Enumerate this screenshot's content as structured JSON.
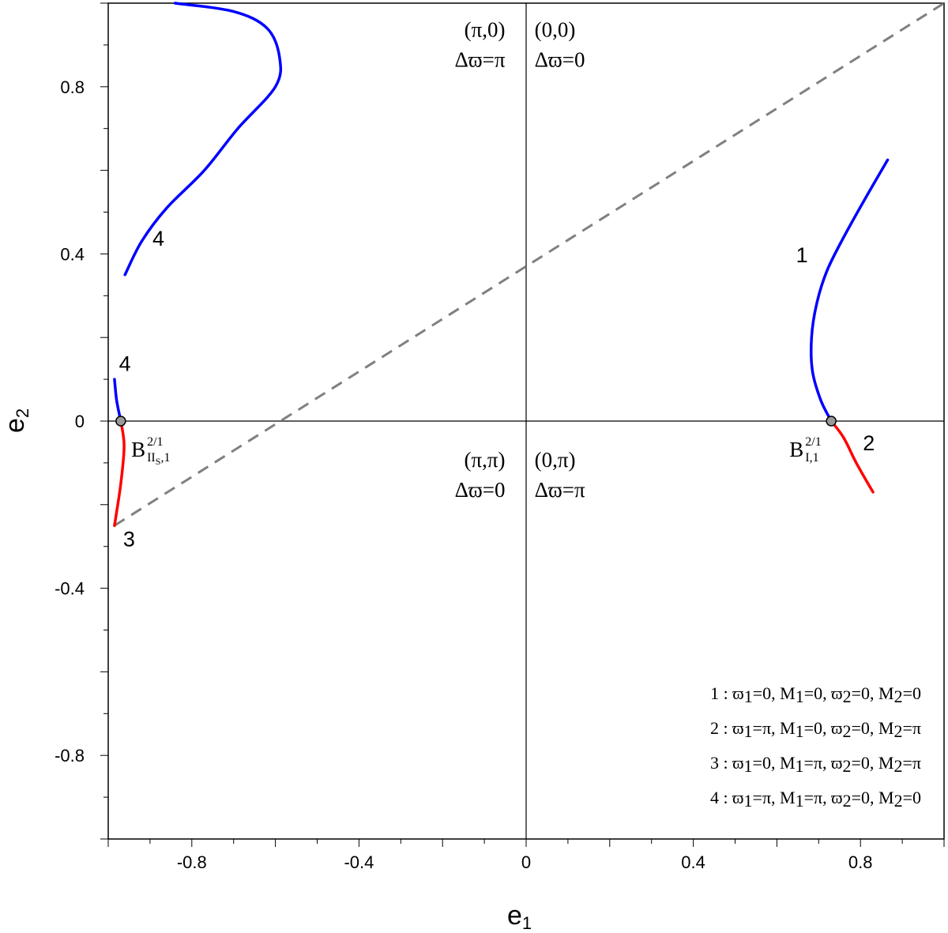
{
  "chart_data": {
    "type": "line",
    "xlabel": "e",
    "xlabel_sub": "1",
    "ylabel": "e",
    "ylabel_sub": "2",
    "xlim": [
      -1,
      1
    ],
    "ylim": [
      -1,
      1
    ],
    "grid": false,
    "x_ticks": [
      {
        "value": -0.8,
        "label": "-0.8"
      },
      {
        "value": -0.4,
        "label": "-0.4"
      },
      {
        "value": 0,
        "label": "0"
      },
      {
        "value": 0.4,
        "label": "0.4"
      },
      {
        "value": 0.8,
        "label": "0.8"
      }
    ],
    "y_ticks": [
      {
        "value": 0.8,
        "label": "0.8"
      },
      {
        "value": 0.4,
        "label": "0.4"
      },
      {
        "value": 0,
        "label": "0"
      },
      {
        "value": -0.4,
        "label": "-0.4"
      },
      {
        "value": -0.8,
        "label": "-0.8"
      }
    ],
    "quadrant_labels": [
      {
        "line1": "(π,0)",
        "line2": "Δϖ=π",
        "x": -0.05,
        "y": 0.92,
        "anchor": "end"
      },
      {
        "line1": "(0,0)",
        "line2": "Δϖ=0",
        "x": 0.02,
        "y": 0.92,
        "anchor": "start"
      },
      {
        "line1": "(π,π)",
        "line2": "Δϖ=0",
        "x": -0.05,
        "y": -0.11,
        "anchor": "end"
      },
      {
        "line1": "(0,π)",
        "line2": "Δϖ=π",
        "x": 0.02,
        "y": -0.11,
        "anchor": "start"
      }
    ],
    "dashed_line": {
      "color": "#808080",
      "points": [
        [
          -0.985,
          -0.25
        ],
        [
          1.0,
          1.0
        ]
      ]
    },
    "series": [
      {
        "label": "1",
        "color": "#0000ff",
        "points": [
          [
            0.73,
            0.0
          ],
          [
            0.705,
            0.05
          ],
          [
            0.685,
            0.12
          ],
          [
            0.683,
            0.2
          ],
          [
            0.695,
            0.28
          ],
          [
            0.72,
            0.36
          ],
          [
            0.76,
            0.44
          ],
          [
            0.81,
            0.53
          ],
          [
            0.865,
            0.625
          ]
        ]
      },
      {
        "label": "2",
        "color": "#ff0000",
        "points": [
          [
            0.73,
            0.0
          ],
          [
            0.76,
            -0.04
          ],
          [
            0.79,
            -0.1
          ],
          [
            0.83,
            -0.17
          ]
        ]
      },
      {
        "label": "3",
        "color": "#ff0000",
        "points": [
          [
            -0.97,
            0.0
          ],
          [
            -0.962,
            -0.06
          ],
          [
            -0.97,
            -0.15
          ],
          [
            -0.985,
            -0.25
          ]
        ]
      },
      {
        "label": "4",
        "color": "#0000ff",
        "points": [
          [
            -0.97,
            0.0
          ],
          [
            -0.98,
            0.05
          ],
          [
            -0.985,
            0.1
          ]
        ]
      },
      {
        "label": "4",
        "color": "#0000ff",
        "points": [
          [
            -0.96,
            0.35
          ],
          [
            -0.92,
            0.43
          ],
          [
            -0.86,
            0.51
          ],
          [
            -0.77,
            0.6
          ],
          [
            -0.69,
            0.7
          ],
          [
            -0.6,
            0.8
          ],
          [
            -0.59,
            0.87
          ],
          [
            -0.62,
            0.94
          ],
          [
            -0.7,
            0.98
          ],
          [
            -0.84,
            1.0
          ]
        ]
      }
    ],
    "curve_labels": [
      {
        "text": "1",
        "x": 0.66,
        "y": 0.38
      },
      {
        "text": "2",
        "x": 0.82,
        "y": -0.07
      },
      {
        "text": "3",
        "x": -0.95,
        "y": -0.3
      },
      {
        "text": "4",
        "x": -0.88,
        "y": 0.42
      },
      {
        "text": "4",
        "x": -0.96,
        "y": 0.12
      }
    ],
    "points": [
      {
        "main": "B",
        "sup": "2/1",
        "sub": "II",
        "subsub": "S",
        "tail": ",1",
        "x": -0.97,
        "y": 0.0,
        "label_x": -0.945,
        "label_y": -0.085
      },
      {
        "main": "B",
        "sup": "2/1",
        "sub": "I,1",
        "subsub": "",
        "tail": "",
        "x": 0.73,
        "y": 0.0,
        "label_x": 0.63,
        "label_y": -0.085
      }
    ],
    "legend": {
      "position": "bottom-right",
      "entries": [
        {
          "num": "1",
          "w1": "0",
          "m1": "0",
          "w2": "0",
          "m2": "0"
        },
        {
          "num": "2",
          "w1": "π",
          "m1": "0",
          "w2": "0",
          "m2": "π"
        },
        {
          "num": "3",
          "w1": "0",
          "m1": "π",
          "w2": "0",
          "m2": "π"
        },
        {
          "num": "4",
          "w1": "π",
          "m1": "π",
          "w2": "0",
          "m2": "0"
        }
      ]
    }
  }
}
